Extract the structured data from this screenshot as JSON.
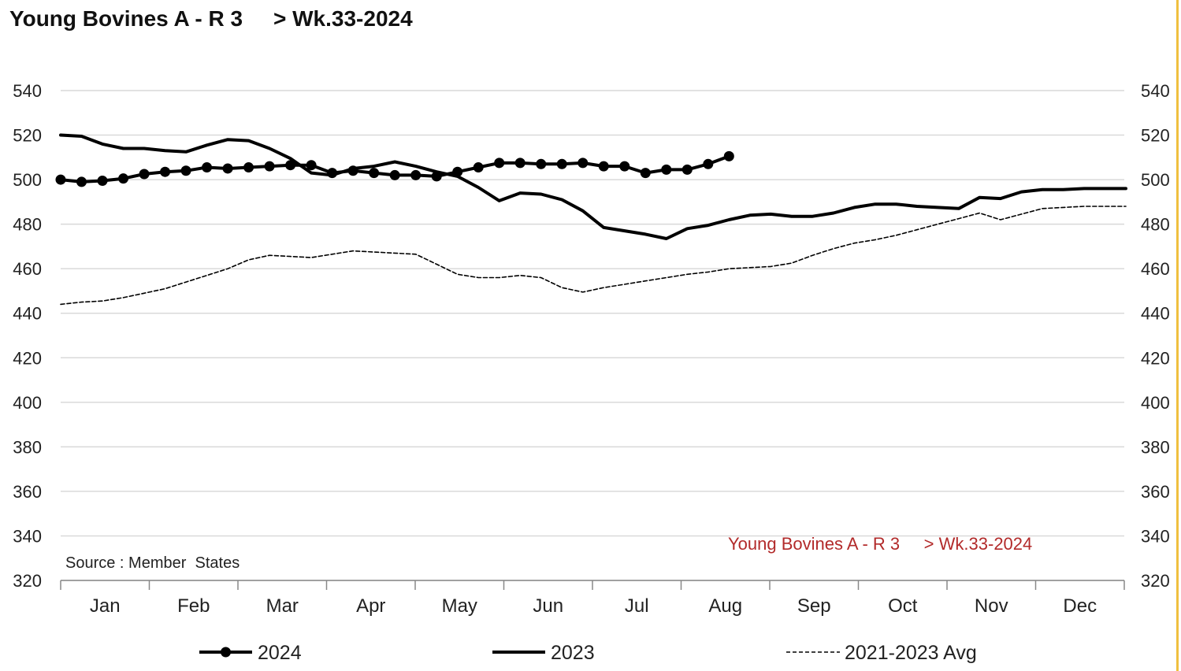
{
  "header": {
    "title": "Young Bovines A - R 3     > Wk.33-2024"
  },
  "source_note": "Source : Member  States",
  "watermark": "Young Bovines A - R 3     > Wk.33-2024",
  "colors": {
    "line": "#000000",
    "grid": "#d9d9d9",
    "watermark": "#b22a2a",
    "border_accent": "#f0c040"
  },
  "chart_data": {
    "type": "line",
    "title": "Young Bovines A - R 3     > Wk.33-2024",
    "xlabel": "",
    "ylabel": "",
    "ylim": [
      320,
      540
    ],
    "yticks": [
      320,
      340,
      360,
      380,
      400,
      420,
      440,
      460,
      480,
      500,
      520,
      540
    ],
    "ytick_labels": [
      "320",
      "340",
      "360",
      "380",
      "400",
      "420",
      "440",
      "460",
      "480",
      "500",
      "520",
      "540"
    ],
    "y_axis_right": true,
    "grid": true,
    "x_unit": "week",
    "x_range": [
      1,
      52
    ],
    "months": [
      "Jan",
      "Feb",
      "Mar",
      "Apr",
      "May",
      "Jun",
      "Jul",
      "Aug",
      "Sep",
      "Oct",
      "Nov",
      "Dec"
    ],
    "legend_position": "bottom",
    "series": [
      {
        "name": "2024",
        "style": "solid-markers",
        "x": [
          1,
          2,
          3,
          4,
          5,
          6,
          7,
          8,
          9,
          10,
          11,
          12,
          13,
          14,
          15,
          16,
          17,
          18,
          19,
          20,
          21,
          22,
          23,
          24,
          25,
          26,
          27,
          28,
          29,
          30,
          31,
          32,
          33
        ],
        "values": [
          500,
          499,
          499.5,
          500.5,
          502.5,
          503.5,
          504,
          505.5,
          505,
          505.5,
          506,
          506.5,
          506.5,
          503,
          504,
          503,
          502,
          502,
          501.5,
          503.5,
          505.5,
          507.5,
          507.5,
          507,
          507,
          507.5,
          506,
          506,
          503,
          504.5,
          504.5,
          507,
          510.5
        ]
      },
      {
        "name": "2023",
        "style": "solid",
        "x": [
          1,
          2,
          3,
          4,
          5,
          6,
          7,
          8,
          9,
          10,
          11,
          12,
          13,
          14,
          15,
          16,
          17,
          18,
          19,
          20,
          21,
          22,
          23,
          24,
          25,
          26,
          27,
          28,
          29,
          30,
          31,
          32,
          33,
          34,
          35,
          36,
          37,
          38,
          39,
          40,
          41,
          42,
          43,
          44,
          45,
          46,
          47,
          48,
          49,
          50,
          51,
          52
        ],
        "values": [
          520,
          519.5,
          516,
          514,
          514,
          513,
          512.5,
          515.5,
          518,
          517.5,
          514,
          509.5,
          503,
          502,
          505,
          506,
          508,
          506,
          503.5,
          501.5,
          496.5,
          490.5,
          494,
          493.5,
          491,
          486,
          478.5,
          477,
          475.5,
          473.5,
          478,
          479.5,
          482,
          484,
          484.5,
          483.5,
          483.5,
          485,
          487.5,
          489,
          489,
          488,
          487.5,
          487,
          492,
          491.5,
          494.5,
          495.5,
          495.5,
          496,
          496,
          496
        ]
      },
      {
        "name": "2021-2023 Avg",
        "style": "dashed",
        "x": [
          1,
          2,
          3,
          4,
          5,
          6,
          7,
          8,
          9,
          10,
          11,
          12,
          13,
          14,
          15,
          16,
          17,
          18,
          19,
          20,
          21,
          22,
          23,
          24,
          25,
          26,
          27,
          28,
          29,
          30,
          31,
          32,
          33,
          34,
          35,
          36,
          37,
          38,
          39,
          40,
          41,
          42,
          43,
          44,
          45,
          46,
          47,
          48,
          49,
          50,
          51,
          52
        ],
        "values": [
          444,
          445,
          445.5,
          447,
          449,
          451,
          454,
          457,
          460,
          464,
          466,
          465.5,
          465,
          466.5,
          468,
          467.5,
          467,
          466.5,
          462,
          457.5,
          456,
          456,
          457,
          456,
          451.5,
          449.5,
          451.5,
          453,
          454.5,
          456,
          457.5,
          458.5,
          460,
          460.5,
          461,
          462.5,
          466,
          469,
          471.5,
          473,
          475,
          477.5,
          480,
          482.5,
          485,
          482,
          484.5,
          487,
          487.5,
          488,
          488,
          488
        ]
      }
    ]
  }
}
